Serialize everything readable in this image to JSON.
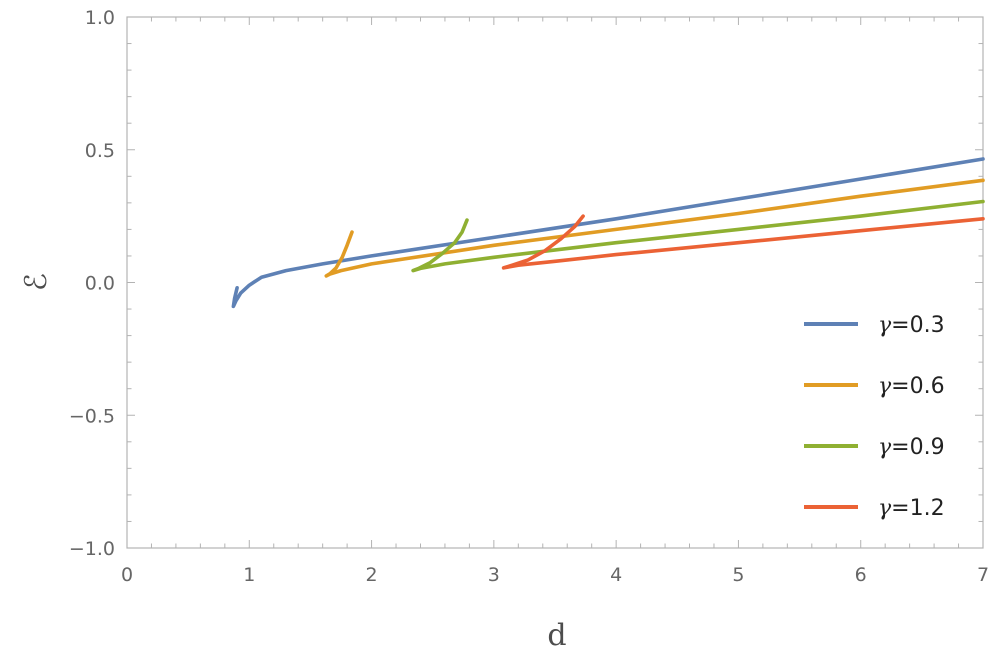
{
  "chart_data": {
    "type": "line",
    "xlabel": "d",
    "ylabel": "ℰ",
    "xlim": [
      0,
      7
    ],
    "ylim": [
      -1.0,
      1.0
    ],
    "x_ticks": [
      "0",
      "1",
      "2",
      "3",
      "4",
      "5",
      "6",
      "7"
    ],
    "y_ticks": [
      "−1.0",
      "−0.5",
      "0.0",
      "0.5",
      "1.0"
    ],
    "legend_position": "bottom-right",
    "grid": false,
    "series": [
      {
        "name": "γ=0.3",
        "legend_symbol": "γ",
        "legend_value": "=0.3",
        "color": "#5E81B5",
        "points": [
          [
            0.9,
            -0.02
          ],
          [
            0.88,
            -0.06
          ],
          [
            0.87,
            -0.09
          ],
          [
            0.89,
            -0.07
          ],
          [
            0.93,
            -0.04
          ],
          [
            1.0,
            -0.01
          ],
          [
            1.1,
            0.02
          ],
          [
            1.3,
            0.045
          ],
          [
            1.6,
            0.07
          ],
          [
            2.0,
            0.1
          ],
          [
            3.0,
            0.17
          ],
          [
            4.0,
            0.24
          ],
          [
            5.0,
            0.315
          ],
          [
            6.0,
            0.39
          ],
          [
            7.0,
            0.465
          ]
        ]
      },
      {
        "name": "γ=0.6",
        "legend_symbol": "γ",
        "legend_value": "=0.6",
        "color": "#E19C24",
        "points": [
          [
            1.84,
            0.19
          ],
          [
            1.8,
            0.14
          ],
          [
            1.76,
            0.095
          ],
          [
            1.71,
            0.055
          ],
          [
            1.66,
            0.033
          ],
          [
            1.63,
            0.025
          ],
          [
            1.66,
            0.032
          ],
          [
            1.75,
            0.045
          ],
          [
            2.0,
            0.07
          ],
          [
            3.0,
            0.14
          ],
          [
            4.0,
            0.2
          ],
          [
            5.0,
            0.26
          ],
          [
            6.0,
            0.325
          ],
          [
            7.0,
            0.385
          ]
        ]
      },
      {
        "name": "γ=0.9",
        "legend_symbol": "γ",
        "legend_value": "=0.9",
        "color": "#8FB032",
        "points": [
          [
            2.78,
            0.235
          ],
          [
            2.74,
            0.19
          ],
          [
            2.68,
            0.15
          ],
          [
            2.58,
            0.11
          ],
          [
            2.48,
            0.075
          ],
          [
            2.38,
            0.052
          ],
          [
            2.34,
            0.045
          ],
          [
            2.4,
            0.053
          ],
          [
            2.6,
            0.07
          ],
          [
            3.0,
            0.095
          ],
          [
            4.0,
            0.15
          ],
          [
            5.0,
            0.2
          ],
          [
            6.0,
            0.25
          ],
          [
            7.0,
            0.305
          ]
        ]
      },
      {
        "name": "γ=1.2",
        "legend_symbol": "γ",
        "legend_value": "=1.2",
        "color": "#EB6235",
        "points": [
          [
            3.73,
            0.25
          ],
          [
            3.66,
            0.21
          ],
          [
            3.55,
            0.165
          ],
          [
            3.42,
            0.12
          ],
          [
            3.28,
            0.085
          ],
          [
            3.15,
            0.065
          ],
          [
            3.08,
            0.055
          ],
          [
            3.2,
            0.065
          ],
          [
            3.5,
            0.08
          ],
          [
            4.0,
            0.105
          ],
          [
            5.0,
            0.15
          ],
          [
            6.0,
            0.195
          ],
          [
            7.0,
            0.24
          ]
        ]
      }
    ]
  }
}
